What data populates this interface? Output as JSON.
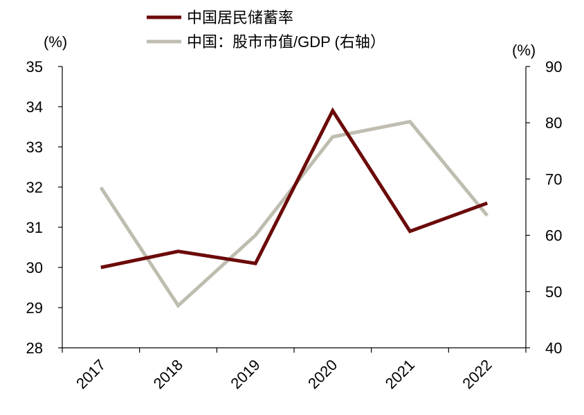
{
  "chart_data": {
    "type": "line",
    "categories": [
      "2017",
      "2018",
      "2019",
      "2020",
      "2021",
      "2022"
    ],
    "series": [
      {
        "name": "中国居民储蓄率",
        "axis": "left",
        "color": "#6b0a0a",
        "values": [
          30.0,
          30.4,
          30.1,
          33.9,
          30.9,
          31.6
        ]
      },
      {
        "name": "中国：股市市值/GDP (右轴）",
        "axis": "right",
        "color": "#bfbdb0",
        "values": [
          68.5,
          47.5,
          60.0,
          77.5,
          80.2,
          63.5
        ]
      }
    ],
    "left_axis": {
      "unit_label": "(%)",
      "ylim": [
        28,
        35
      ],
      "ticks": [
        28,
        29,
        30,
        31,
        32,
        33,
        34,
        35
      ]
    },
    "right_axis": {
      "unit_label": "(%)",
      "ylim": [
        40,
        90
      ],
      "ticks": [
        40,
        50,
        60,
        70,
        80,
        90
      ]
    },
    "grid": false,
    "legend_position": "top"
  }
}
